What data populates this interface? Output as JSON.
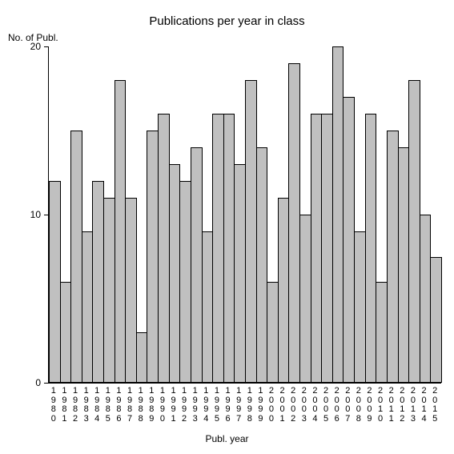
{
  "chart": {
    "type": "bar",
    "title": "Publications per year in class",
    "title_fontsize": 15,
    "ylabel": "No. of Publ.",
    "xlabel": "Publ. year",
    "label_fontsize": 12,
    "categories": [
      "1980",
      "1981",
      "1982",
      "1983",
      "1984",
      "1985",
      "1986",
      "1987",
      "1988",
      "1989",
      "1990",
      "1991",
      "1992",
      "1993",
      "1994",
      "1995",
      "1996",
      "1997",
      "1998",
      "1999",
      "2000",
      "2001",
      "2002",
      "2003",
      "2004",
      "2005",
      "2006",
      "2007",
      "2008",
      "2009",
      "2010",
      "2011",
      "2012",
      "2013",
      "2014",
      "2015"
    ],
    "values": [
      12,
      6,
      15,
      9,
      12,
      11,
      18,
      11,
      3,
      15,
      16,
      13,
      12,
      14,
      9,
      16,
      16,
      13,
      18,
      14,
      6,
      11,
      19,
      10,
      16,
      16,
      20,
      17,
      9,
      16,
      6,
      15,
      14,
      18,
      10,
      7.5
    ],
    "bar_fill": "#c0c0c0",
    "bar_border": "#000000",
    "background_color": "#ffffff",
    "axis_color": "#000000",
    "ylim": [
      0,
      20
    ],
    "yticks": [
      0,
      10,
      20
    ],
    "tick_fontsize": 12,
    "xtick_fontsize": 11,
    "bar_gap": 0
  }
}
